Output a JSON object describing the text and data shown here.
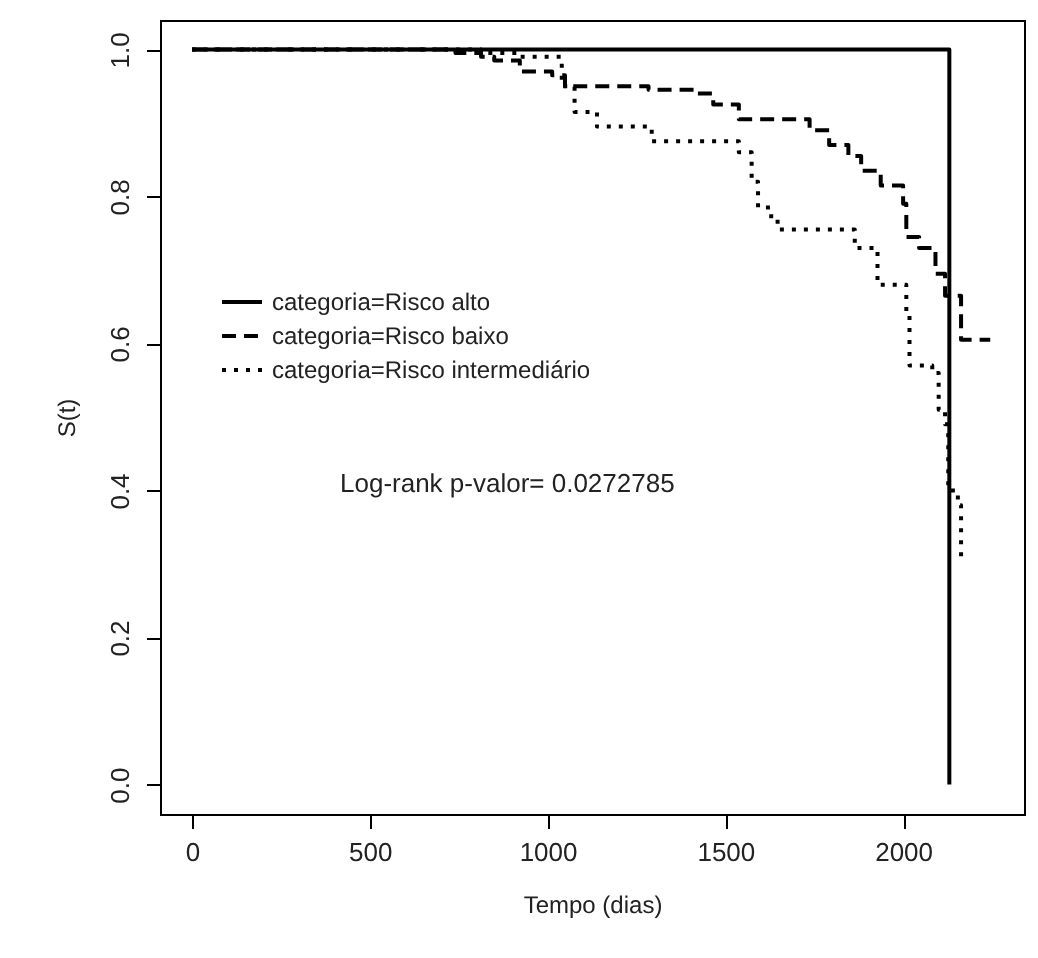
{
  "chart_data": {
    "type": "step",
    "xlabel": "Tempo (dias)",
    "ylabel": "S(t)",
    "xlim": [
      -90,
      2340
    ],
    "ylim": [
      -0.04,
      1.04
    ],
    "xticks": [
      0,
      500,
      1000,
      1500,
      2000
    ],
    "yticks": [
      {
        "value": 0,
        "label": "0.0"
      },
      0.2,
      0.4,
      0.6,
      0.8,
      {
        "value": 1,
        "label": "1.0"
      }
    ],
    "grid": false,
    "legend": "left",
    "marker": "none",
    "annotations": [
      "Log-rank p-valor= 0.0272785"
    ],
    "series": [
      {
        "name": "categoria=Risco alto",
        "color": "#000000",
        "line_style": "solid",
        "x": [
          0,
          2130
        ],
        "values": [
          1,
          0
        ]
      },
      {
        "name": "categoria=Risco baixo",
        "color": "#000000",
        "line_style": "dashed",
        "x": [
          0,
          741,
          813,
          850,
          922,
          1013,
          1049,
          1284,
          1411,
          1466,
          1538,
          1737,
          1792,
          1846,
          1882,
          1937,
          2000,
          2009,
          2045,
          2091,
          2118,
          2163,
          2245
        ],
        "values": [
          1,
          0.995,
          0.99,
          0.985,
          0.97,
          0.965,
          0.95,
          0.945,
          0.94,
          0.925,
          0.905,
          0.89,
          0.87,
          0.855,
          0.835,
          0.815,
          0.79,
          0.745,
          0.73,
          0.695,
          0.665,
          0.605,
          0.605
        ]
      },
      {
        "name": "categoria=Risco intermediário",
        "color": "#000000",
        "line_style": "dotted",
        "x": [
          0,
          813,
          922,
          1040,
          1076,
          1139,
          1293,
          1538,
          1574,
          1592,
          1629,
          1647,
          1864,
          1928,
          2009,
          2018,
          2082,
          2100,
          2118,
          2127,
          2154,
          2163
        ],
        "values": [
          1,
          0.995,
          0.99,
          0.95,
          0.915,
          0.895,
          0.875,
          0.86,
          0.82,
          0.785,
          0.77,
          0.755,
          0.73,
          0.68,
          0.64,
          0.57,
          0.56,
          0.51,
          0.49,
          0.4,
          0.38,
          0.305
        ]
      }
    ]
  }
}
